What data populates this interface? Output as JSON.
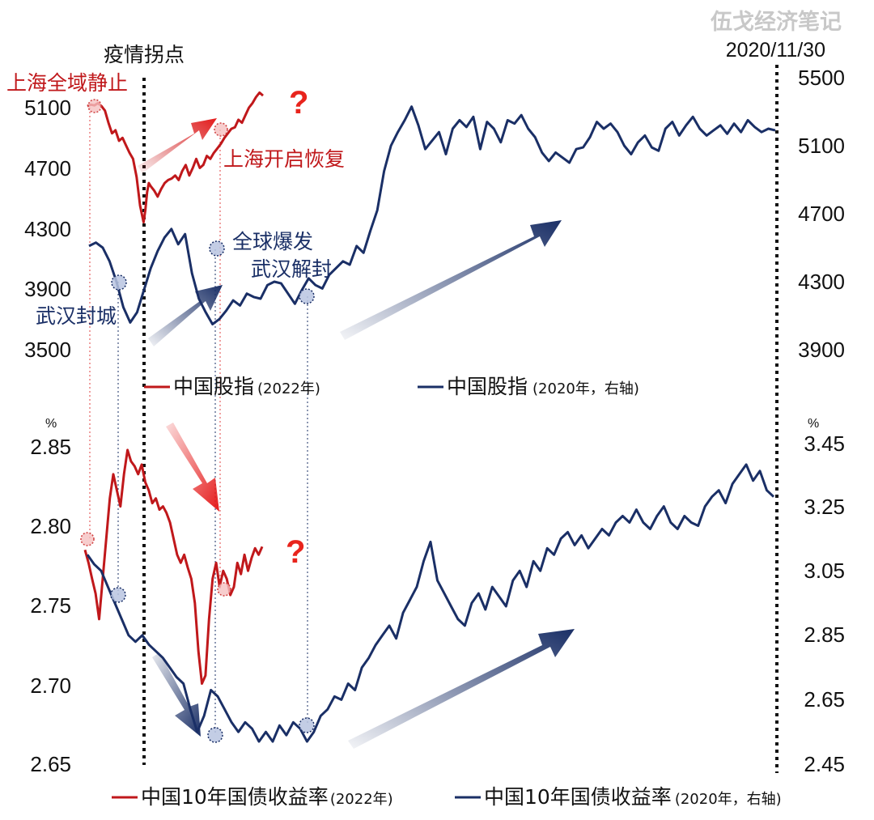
{
  "header": {
    "watermark": "伍戈经济笔记",
    "date": "2020/11/30",
    "turning_point": "疫情拐点"
  },
  "colors": {
    "red": "#c0181b",
    "navy": "#1a2f66",
    "navy_light": "#8a9cc8",
    "question": "#e8241c"
  },
  "chart_data": [
    {
      "type": "line",
      "name": "stock",
      "title": "",
      "left_axis": {
        "ticks": [
          "5100",
          "4700",
          "4300",
          "3900",
          "3500"
        ],
        "range": [
          3500,
          5100
        ]
      },
      "right_axis": {
        "ticks": [
          "5500",
          "5100",
          "4700",
          "4300",
          "3900"
        ],
        "range": [
          3900,
          5500
        ]
      },
      "series": [
        {
          "name": "中国股指",
          "name_suffix": "(2022年)",
          "axis": "left",
          "color": "#c0181b",
          "x_range": [
            0,
            1
          ],
          "x": [
            0.0,
            0.02,
            0.04,
            0.06,
            0.08,
            0.1,
            0.12,
            0.14,
            0.16,
            0.18,
            0.2,
            0.22,
            0.24,
            0.26,
            0.28,
            0.3,
            0.32,
            0.33,
            0.34,
            0.35,
            0.36,
            0.38,
            0.4,
            0.42,
            0.44,
            0.46,
            0.48,
            0.5,
            0.52,
            0.54,
            0.56,
            0.58,
            0.6,
            0.62,
            0.64,
            0.66,
            0.68,
            0.7,
            0.72,
            0.74,
            0.76,
            0.78,
            0.8,
            0.82,
            0.84,
            0.86,
            0.88,
            0.9,
            0.92,
            0.94,
            0.96,
            0.98,
            1.0
          ],
          "y": [
            5110,
            5120,
            5115,
            5130,
            5110,
            5080,
            5000,
            4930,
            4950,
            4880,
            4900,
            4850,
            4800,
            4760,
            4640,
            4450,
            4340,
            4420,
            4540,
            4600,
            4580,
            4550,
            4510,
            4560,
            4600,
            4620,
            4630,
            4650,
            4620,
            4680,
            4720,
            4650,
            4700,
            4760,
            4700,
            4720,
            4780,
            4760,
            4800,
            4830,
            4860,
            4900,
            4930,
            4960,
            4970,
            5020,
            5000,
            5050,
            5100,
            5130,
            5170,
            5200,
            5180
          ]
        },
        {
          "name": "中国股指",
          "name_suffix": "(2020年，右轴)",
          "axis": "right",
          "color": "#1a2f66",
          "x_range": [
            0,
            1
          ],
          "x": [
            0.0,
            0.01,
            0.02,
            0.03,
            0.04,
            0.05,
            0.06,
            0.07,
            0.08,
            0.09,
            0.1,
            0.11,
            0.12,
            0.13,
            0.14,
            0.15,
            0.16,
            0.17,
            0.18,
            0.19,
            0.2,
            0.21,
            0.22,
            0.23,
            0.24,
            0.25,
            0.26,
            0.27,
            0.28,
            0.29,
            0.3,
            0.31,
            0.32,
            0.33,
            0.34,
            0.35,
            0.36,
            0.37,
            0.38,
            0.39,
            0.4,
            0.41,
            0.42,
            0.43,
            0.44,
            0.45,
            0.46,
            0.47,
            0.48,
            0.49,
            0.5,
            0.51,
            0.52,
            0.53,
            0.54,
            0.55,
            0.56,
            0.57,
            0.58,
            0.59,
            0.6,
            0.61,
            0.62,
            0.63,
            0.64,
            0.65,
            0.66,
            0.67,
            0.68,
            0.69,
            0.7,
            0.71,
            0.72,
            0.73,
            0.74,
            0.75,
            0.76,
            0.77,
            0.78,
            0.79,
            0.8,
            0.81,
            0.82,
            0.83,
            0.84,
            0.85,
            0.86,
            0.87,
            0.88,
            0.89,
            0.9,
            0.91,
            0.92,
            0.93,
            0.94,
            0.95,
            0.96,
            0.97,
            0.98,
            0.99,
            1.0
          ],
          "y": [
            4510,
            4530,
            4500,
            4420,
            4300,
            4150,
            4060,
            4120,
            4250,
            4380,
            4480,
            4560,
            4610,
            4520,
            4580,
            4350,
            4200,
            4120,
            4050,
            4080,
            4130,
            4190,
            4160,
            4230,
            4210,
            4200,
            4280,
            4300,
            4290,
            4230,
            4170,
            4250,
            4320,
            4280,
            4260,
            4340,
            4380,
            4420,
            4400,
            4510,
            4470,
            4600,
            4720,
            4950,
            5100,
            5180,
            5250,
            5330,
            5220,
            5080,
            5130,
            5180,
            5050,
            5200,
            5250,
            5210,
            5270,
            5080,
            5240,
            5200,
            5120,
            5250,
            5230,
            5280,
            5200,
            5150,
            5060,
            5010,
            5060,
            5030,
            5000,
            5080,
            5090,
            5150,
            5240,
            5200,
            5230,
            5180,
            5100,
            5050,
            5120,
            5160,
            5090,
            5070,
            5200,
            5240,
            5160,
            5220,
            5270,
            5200,
            5160,
            5190,
            5220,
            5170,
            5230,
            5180,
            5250,
            5210,
            5180,
            5200,
            5190
          ]
        }
      ]
    },
    {
      "type": "line",
      "name": "bond",
      "title": "",
      "left_axis": {
        "ticks": [
          "2.85",
          "2.80",
          "2.75",
          "2.70",
          "2.65"
        ],
        "range": [
          2.65,
          2.85
        ],
        "unit": "%"
      },
      "right_axis": {
        "ticks": [
          "3.45",
          "3.25",
          "3.05",
          "2.85",
          "2.65",
          "2.45"
        ],
        "range": [
          2.45,
          3.45
        ],
        "unit": "%"
      },
      "series": [
        {
          "name": "中国10年国债收益率",
          "name_suffix": "(2022年)",
          "axis": "left",
          "color": "#c0181b",
          "x_range": [
            0,
            1
          ],
          "x": [
            0.0,
            0.02,
            0.04,
            0.06,
            0.08,
            0.1,
            0.12,
            0.14,
            0.16,
            0.18,
            0.2,
            0.22,
            0.24,
            0.26,
            0.28,
            0.3,
            0.32,
            0.34,
            0.36,
            0.38,
            0.4,
            0.42,
            0.44,
            0.46,
            0.48,
            0.5,
            0.52,
            0.54,
            0.56,
            0.58,
            0.6,
            0.62,
            0.64,
            0.66,
            0.68,
            0.7,
            0.72,
            0.74,
            0.76,
            0.78,
            0.8,
            0.82,
            0.84,
            0.86,
            0.88,
            0.9,
            0.92,
            0.94,
            0.96,
            0.98,
            1.0
          ],
          "y": [
            2.783,
            2.775,
            2.765,
            2.756,
            2.74,
            2.765,
            2.79,
            2.815,
            2.83,
            2.82,
            2.81,
            2.83,
            2.845,
            2.838,
            2.835,
            2.83,
            2.836,
            2.825,
            2.82,
            2.812,
            2.815,
            2.808,
            2.81,
            2.806,
            2.8,
            2.79,
            2.78,
            2.775,
            2.78,
            2.772,
            2.765,
            2.75,
            2.72,
            2.7,
            2.705,
            2.74,
            2.765,
            2.775,
            2.76,
            2.77,
            2.765,
            2.755,
            2.76,
            2.775,
            2.768,
            2.78,
            2.77,
            2.778,
            2.784,
            2.78,
            2.785
          ]
        },
        {
          "name": "中国10年国债收益率",
          "name_suffix": "(2020年，右轴)",
          "axis": "right",
          "color": "#1a2f66",
          "x_range": [
            0,
            1
          ],
          "x": [
            0.0,
            0.01,
            0.02,
            0.03,
            0.04,
            0.05,
            0.06,
            0.07,
            0.08,
            0.09,
            0.1,
            0.11,
            0.12,
            0.13,
            0.14,
            0.15,
            0.16,
            0.17,
            0.18,
            0.19,
            0.2,
            0.21,
            0.22,
            0.23,
            0.24,
            0.25,
            0.26,
            0.27,
            0.28,
            0.29,
            0.3,
            0.31,
            0.32,
            0.33,
            0.34,
            0.35,
            0.36,
            0.37,
            0.38,
            0.39,
            0.4,
            0.41,
            0.42,
            0.43,
            0.44,
            0.45,
            0.46,
            0.47,
            0.48,
            0.49,
            0.5,
            0.51,
            0.52,
            0.53,
            0.54,
            0.55,
            0.56,
            0.57,
            0.58,
            0.59,
            0.6,
            0.61,
            0.62,
            0.63,
            0.64,
            0.65,
            0.66,
            0.67,
            0.68,
            0.69,
            0.7,
            0.71,
            0.72,
            0.73,
            0.74,
            0.75,
            0.76,
            0.77,
            0.78,
            0.79,
            0.8,
            0.81,
            0.82,
            0.83,
            0.84,
            0.85,
            0.86,
            0.87,
            0.88,
            0.89,
            0.9,
            0.91,
            0.92,
            0.93,
            0.94,
            0.95,
            0.96,
            0.97,
            0.98,
            0.99,
            1.0
          ],
          "y": [
            3.1,
            3.07,
            3.05,
            3.0,
            2.95,
            2.9,
            2.85,
            2.83,
            2.85,
            2.82,
            2.8,
            2.78,
            2.75,
            2.72,
            2.7,
            2.62,
            2.55,
            2.6,
            2.68,
            2.66,
            2.62,
            2.58,
            2.55,
            2.58,
            2.56,
            2.52,
            2.55,
            2.52,
            2.57,
            2.54,
            2.58,
            2.56,
            2.52,
            2.55,
            2.6,
            2.62,
            2.66,
            2.65,
            2.7,
            2.68,
            2.75,
            2.78,
            2.82,
            2.85,
            2.88,
            2.84,
            2.92,
            2.96,
            3.0,
            3.08,
            3.14,
            3.02,
            2.98,
            2.94,
            2.9,
            2.88,
            2.95,
            2.98,
            2.93,
            3.0,
            2.97,
            2.94,
            3.02,
            3.05,
            3.0,
            3.08,
            3.05,
            3.12,
            3.1,
            3.15,
            3.17,
            3.13,
            3.16,
            3.12,
            3.15,
            3.18,
            3.16,
            3.2,
            3.22,
            3.2,
            3.24,
            3.2,
            3.18,
            3.22,
            3.25,
            3.2,
            3.18,
            3.22,
            3.2,
            3.19,
            3.25,
            3.28,
            3.3,
            3.26,
            3.32,
            3.35,
            3.38,
            3.33,
            3.36,
            3.3,
            3.28
          ]
        }
      ]
    }
  ],
  "annotations": {
    "shanghai_lockdown": "上海全域静止",
    "shanghai_recovery": "上海开启恢复",
    "wuhan_lockdown": "武汉封城",
    "global_outbreak": "全球爆发",
    "wuhan_unlock": "武汉解封",
    "question_mark": "?"
  }
}
